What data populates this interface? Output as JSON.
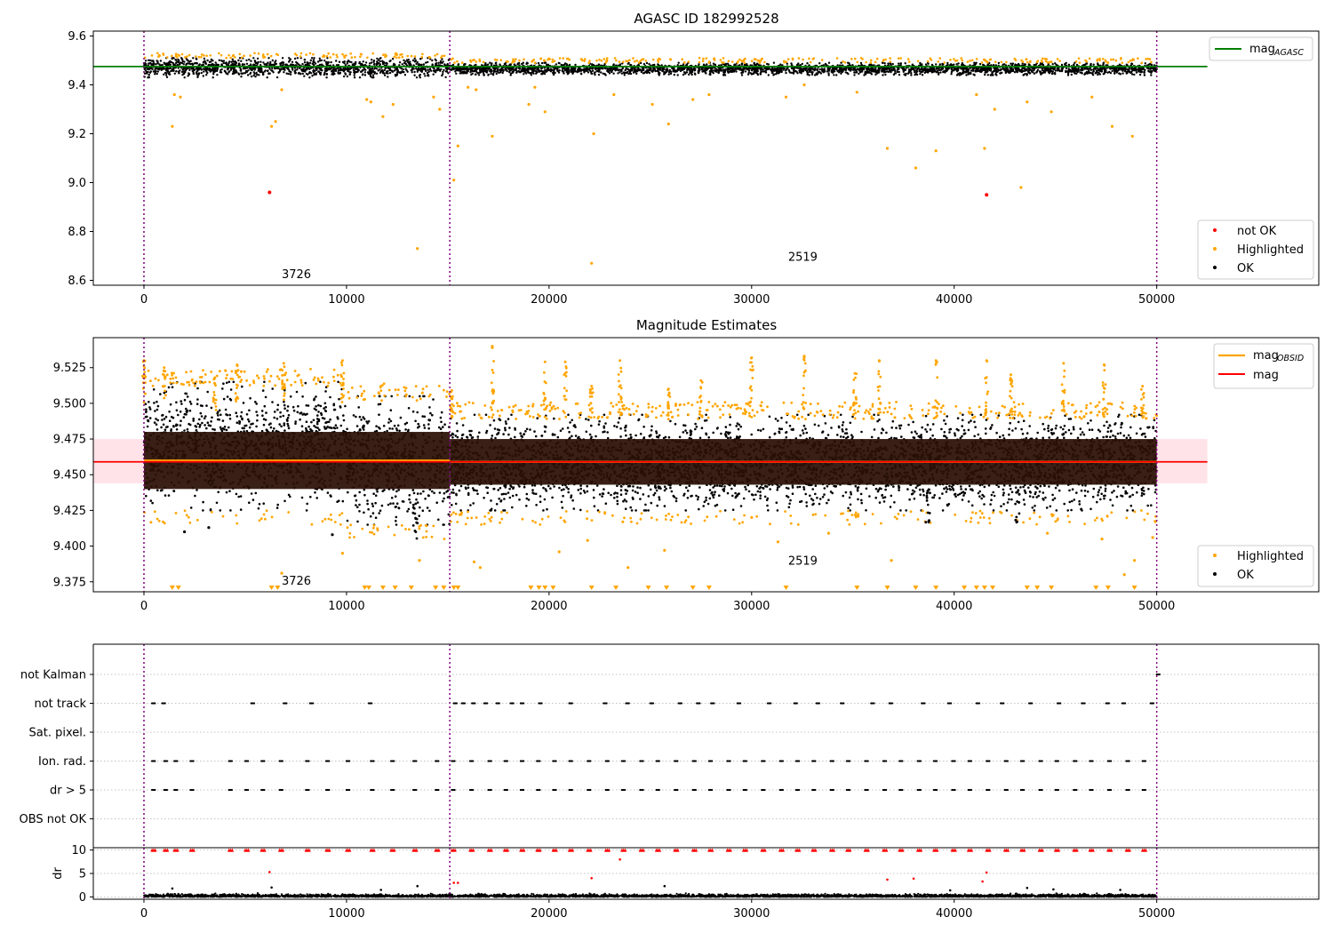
{
  "figure": {
    "colors": {
      "ok": "#000000",
      "highlighted": "#ffa500",
      "not_ok": "#ff0000",
      "agasc_line": "#008000",
      "mag_line": "#ff0000",
      "obsid_line": "#ffa500",
      "band": "#ffc0cb",
      "obs_boundary": "#800080",
      "grid": "#b0b0b0"
    }
  },
  "chart_data": [
    {
      "type": "scatter",
      "title": "AGASC ID 182992528",
      "xlabel": "",
      "ylabel": "",
      "xlim": [
        -2500,
        58000
      ],
      "ylim": [
        8.58,
        9.62
      ],
      "xticks": [
        0,
        10000,
        20000,
        30000,
        40000,
        50000
      ],
      "yticks": [
        8.6,
        8.8,
        9.0,
        9.2,
        9.4,
        9.6
      ],
      "ytick_labels": [
        "8.6",
        "8.8",
        "9.0",
        "9.2",
        "9.4",
        "9.6"
      ],
      "grid": false,
      "obs_boundaries": [
        0,
        15100,
        50000
      ],
      "obs_labels": [
        {
          "x": 6800,
          "y": 8.61,
          "text": "3726"
        },
        {
          "x": 31800,
          "y": 8.68,
          "text": "2519"
        }
      ],
      "mag_agasc": {
        "value": 9.475,
        "x": [
          -2500,
          52500
        ]
      },
      "ok_band": [
        {
          "x": [
            0,
            15100
          ],
          "y": [
            9.43,
            9.51
          ]
        },
        {
          "x": [
            15100,
            50000
          ],
          "y": [
            9.44,
            9.49
          ]
        }
      ],
      "highlighted_points": [
        [
          1400,
          9.23
        ],
        [
          1500,
          9.36
        ],
        [
          1800,
          9.35
        ],
        [
          6300,
          9.23
        ],
        [
          6500,
          9.25
        ],
        [
          6800,
          9.38
        ],
        [
          11000,
          9.34
        ],
        [
          11200,
          9.33
        ],
        [
          11800,
          9.27
        ],
        [
          12300,
          9.32
        ],
        [
          13500,
          8.73
        ],
        [
          14300,
          9.35
        ],
        [
          14600,
          9.3
        ],
        [
          15300,
          9.01
        ],
        [
          15500,
          9.15
        ],
        [
          16000,
          9.39
        ],
        [
          16400,
          9.38
        ],
        [
          17200,
          9.19
        ],
        [
          19000,
          9.32
        ],
        [
          19300,
          9.39
        ],
        [
          19800,
          9.29
        ],
        [
          22100,
          8.67
        ],
        [
          22200,
          9.2
        ],
        [
          23200,
          9.36
        ],
        [
          25100,
          9.32
        ],
        [
          25900,
          9.24
        ],
        [
          27100,
          9.34
        ],
        [
          27900,
          9.36
        ],
        [
          31700,
          9.35
        ],
        [
          32600,
          9.4
        ],
        [
          35200,
          9.37
        ],
        [
          36700,
          9.14
        ],
        [
          38100,
          9.06
        ],
        [
          39100,
          9.13
        ],
        [
          41100,
          9.36
        ],
        [
          41500,
          9.14
        ],
        [
          42000,
          9.3
        ],
        [
          43300,
          8.98
        ],
        [
          43600,
          9.33
        ],
        [
          44800,
          9.29
        ],
        [
          46800,
          9.35
        ],
        [
          47800,
          9.23
        ],
        [
          48800,
          9.19
        ]
      ],
      "not_ok_points": [
        [
          6200,
          8.96
        ],
        [
          41600,
          8.95
        ]
      ],
      "legend_upper": {
        "placement": "upper right",
        "entries": [
          {
            "label": "mag",
            "sub": "AGASC"
          }
        ]
      },
      "legend_lower": {
        "placement": "lower right",
        "entries": [
          "not OK",
          "Highlighted",
          "OK"
        ]
      }
    },
    {
      "type": "scatter",
      "title": "Magnitude Estimates",
      "xlabel": "",
      "ylabel": "",
      "xlim": [
        -2500,
        58000
      ],
      "ylim": [
        9.368,
        9.546
      ],
      "xticks": [
        0,
        10000,
        20000,
        30000,
        40000,
        50000
      ],
      "yticks": [
        9.375,
        9.4,
        9.425,
        9.45,
        9.475,
        9.5,
        9.525
      ],
      "ytick_labels": [
        "9.375",
        "9.400",
        "9.425",
        "9.450",
        "9.475",
        "9.500",
        "9.525"
      ],
      "grid": false,
      "obs_boundaries": [
        0,
        15100,
        50000
      ],
      "obs_labels": [
        {
          "x": 6800,
          "y": 9.373,
          "text": "3726"
        },
        {
          "x": 31800,
          "y": 9.387,
          "text": "2519"
        }
      ],
      "mag": {
        "value": 9.459,
        "x": [
          -2500,
          52500
        ]
      },
      "mag_band": {
        "y": [
          9.444,
          9.475
        ],
        "x": [
          -2500,
          52500
        ]
      },
      "mag_obsid": [
        {
          "x": [
            0,
            15100
          ],
          "value": 9.46
        },
        {
          "x": [
            15100,
            50000
          ],
          "value": 9.459
        }
      ],
      "core_band": [
        {
          "x": [
            0,
            15100
          ],
          "y": [
            9.44,
            9.48
          ]
        },
        {
          "x": [
            15100,
            50000
          ],
          "y": [
            9.443,
            9.475
          ]
        }
      ],
      "ok_envelope": [
        {
          "x": [
            0,
            10000
          ],
          "y": [
            9.425,
            9.515
          ]
        },
        {
          "x": [
            10000,
            15100
          ],
          "y": [
            9.415,
            9.505
          ]
        },
        {
          "x": [
            15100,
            50000
          ],
          "y": [
            9.425,
            9.492
          ]
        }
      ],
      "isolated_points": [
        {
          "group": "ok",
          "x": 2000,
          "y": 9.41
        },
        {
          "group": "ok",
          "x": 3200,
          "y": 9.413
        },
        {
          "group": "ok",
          "x": 9300,
          "y": 9.408
        },
        {
          "group": "highlighted",
          "x": 6800,
          "y": 9.381
        },
        {
          "group": "highlighted",
          "x": 9800,
          "y": 9.395
        },
        {
          "group": "highlighted",
          "x": 13600,
          "y": 9.39
        },
        {
          "group": "highlighted",
          "x": 16300,
          "y": 9.389
        },
        {
          "group": "highlighted",
          "x": 16600,
          "y": 9.385
        },
        {
          "group": "highlighted",
          "x": 20500,
          "y": 9.396
        },
        {
          "group": "highlighted",
          "x": 21900,
          "y": 9.404
        },
        {
          "group": "highlighted",
          "x": 23900,
          "y": 9.385
        },
        {
          "group": "highlighted",
          "x": 25700,
          "y": 9.397
        },
        {
          "group": "highlighted",
          "x": 30000,
          "y": 9.42
        },
        {
          "group": "highlighted",
          "x": 31300,
          "y": 9.403
        },
        {
          "group": "highlighted",
          "x": 33800,
          "y": 9.409
        },
        {
          "group": "highlighted",
          "x": 36900,
          "y": 9.39
        },
        {
          "group": "highlighted",
          "x": 44600,
          "y": 9.409
        },
        {
          "group": "highlighted",
          "x": 47300,
          "y": 9.405
        },
        {
          "group": "highlighted",
          "x": 48400,
          "y": 9.38
        },
        {
          "group": "highlighted",
          "x": 48900,
          "y": 9.39
        },
        {
          "group": "highlighted",
          "x": 49800,
          "y": 9.406
        },
        {
          "group": "highlighted",
          "x": 17200,
          "y": 9.539
        },
        {
          "group": "highlighted",
          "x": 32600,
          "y": 9.533
        }
      ],
      "spikes": [
        {
          "x": 0,
          "y": [
            9.5,
            9.53
          ]
        },
        {
          "x": 1000,
          "y": [
            9.5,
            9.525
          ]
        },
        {
          "x": 3500,
          "y": [
            9.495,
            9.518
          ]
        },
        {
          "x": 4600,
          "y": [
            9.5,
            9.527
          ]
        },
        {
          "x": 6900,
          "y": [
            9.5,
            9.528
          ]
        },
        {
          "x": 9800,
          "y": [
            9.5,
            9.53
          ]
        },
        {
          "x": 15200,
          "y": [
            9.49,
            9.509
          ]
        },
        {
          "x": 17200,
          "y": [
            9.49,
            9.54
          ]
        },
        {
          "x": 19800,
          "y": [
            9.49,
            9.529
          ]
        },
        {
          "x": 20800,
          "y": [
            9.49,
            9.529
          ]
        },
        {
          "x": 22100,
          "y": [
            9.49,
            9.512
          ]
        },
        {
          "x": 23500,
          "y": [
            9.49,
            9.53
          ]
        },
        {
          "x": 25900,
          "y": [
            9.49,
            9.51
          ]
        },
        {
          "x": 27500,
          "y": [
            9.49,
            9.516
          ]
        },
        {
          "x": 30000,
          "y": [
            9.49,
            9.532
          ]
        },
        {
          "x": 32600,
          "y": [
            9.49,
            9.532
          ]
        },
        {
          "x": 35100,
          "y": [
            9.49,
            9.521
          ]
        },
        {
          "x": 36300,
          "y": [
            9.49,
            9.53
          ]
        },
        {
          "x": 39100,
          "y": [
            9.49,
            9.53
          ]
        },
        {
          "x": 41600,
          "y": [
            9.49,
            9.53
          ]
        },
        {
          "x": 42800,
          "y": [
            9.49,
            9.52
          ]
        },
        {
          "x": 45400,
          "y": [
            9.49,
            9.528
          ]
        },
        {
          "x": 47400,
          "y": [
            9.49,
            9.527
          ]
        },
        {
          "x": 49300,
          "y": [
            9.49,
            9.512
          ]
        }
      ],
      "low_spikes": [
        {
          "x": 13400,
          "y": [
            9.405,
            9.43
          ]
        },
        {
          "x": 38700,
          "y": [
            9.415,
            9.44
          ]
        },
        {
          "x": 43100,
          "y": [
            9.415,
            9.44
          ]
        }
      ],
      "out_of_range_markers": [
        1400,
        1700,
        6300,
        6600,
        10900,
        11100,
        11800,
        12400,
        13200,
        14400,
        14800,
        15300,
        15500,
        19100,
        19500,
        19800,
        20200,
        22100,
        23300,
        24900,
        25800,
        27100,
        27900,
        31700,
        35200,
        36700,
        38100,
        39100,
        40500,
        41100,
        41500,
        41900,
        43600,
        44100,
        44800,
        47000,
        47600,
        48900
      ],
      "legend_upper": {
        "placement": "upper right",
        "entries": [
          {
            "label": "mag",
            "sub": "OBSID"
          },
          {
            "label": "mag",
            "sub": ""
          }
        ]
      },
      "legend_lower": {
        "placement": "lower right",
        "entries": [
          "Highlighted",
          "OK"
        ]
      }
    },
    {
      "type": "scatter",
      "title": "",
      "xlabel": "",
      "ylabel": "",
      "xlim": [
        -2500,
        58000
      ],
      "categories": [
        "not Kalman",
        "not track",
        "Sat. pixel.",
        "Ion. rad.",
        "dr > 5",
        "OBS not OK"
      ],
      "grid": true,
      "obs_boundaries": [
        0,
        15100,
        50000
      ],
      "flag_events": {
        "not Kalman": [
          50000
        ],
        "not track": [
          400,
          900,
          5300,
          6900,
          8200,
          11100,
          15300,
          15700,
          16200,
          16800,
          17400,
          18100,
          18600,
          19500,
          21000,
          22700,
          23800,
          25000,
          26400,
          27300,
          28000,
          29300,
          30800,
          32100,
          33200,
          34400,
          35900,
          36800,
          38400,
          39700,
          41100,
          42300,
          43700,
          45100,
          46300,
          47500,
          48300,
          49700
        ],
        "Sat. pixel.": [],
        "Ion. rad.": [
          400,
          1000,
          1500,
          2300,
          4200,
          5000,
          5800,
          6700,
          8000,
          9000,
          10000,
          11200,
          12200,
          13300,
          14400,
          15200,
          16100,
          17000,
          17800,
          18600,
          19400,
          20200,
          21000,
          21900,
          22800,
          23600,
          24500,
          25300,
          26200,
          27100,
          27900,
          28800,
          29600,
          30500,
          31400,
          32200,
          33000,
          33900,
          34700,
          35600,
          36500,
          37300,
          38200,
          39000,
          39900,
          40700,
          41600,
          42500,
          43300,
          44200,
          45000,
          45900,
          46700,
          47600,
          48500,
          49300
        ],
        "dr > 5": [
          400,
          1000,
          1500,
          2300,
          4200,
          5000,
          5800,
          6700,
          8000,
          9000,
          10000,
          11200,
          12200,
          13300,
          14400,
          15200,
          16100,
          17000,
          17800,
          18600,
          19400,
          20200,
          21000,
          21900,
          22800,
          23600,
          24500,
          25300,
          26200,
          27100,
          27900,
          28800,
          29600,
          30500,
          31400,
          32200,
          33000,
          33900,
          34700,
          35600,
          36500,
          37300,
          38200,
          39000,
          39900,
          40700,
          41600,
          42500,
          43300,
          44200,
          45000,
          45900,
          46700,
          47600,
          48500,
          49300
        ],
        "OBS not OK": []
      }
    },
    {
      "type": "scatter",
      "title": "",
      "xlabel": "",
      "ylabel": "dr",
      "xlim": [
        -2500,
        58000
      ],
      "ylim": [
        -0.5,
        10.5
      ],
      "xticks": [
        0,
        10000,
        20000,
        30000,
        40000,
        50000
      ],
      "yticks": [
        0,
        5,
        10
      ],
      "grid": true,
      "obs_boundaries": [
        0,
        15100,
        50000
      ],
      "capped_markers": [
        400,
        1000,
        1500,
        2300,
        4200,
        5000,
        5800,
        6700,
        8000,
        9000,
        10000,
        11200,
        12200,
        13300,
        14400,
        15200,
        16100,
        17000,
        17800,
        18600,
        19400,
        20200,
        21000,
        21900,
        22800,
        23600,
        24500,
        25300,
        26200,
        27100,
        27900,
        28800,
        29600,
        30500,
        31400,
        32200,
        33000,
        33900,
        34700,
        35600,
        36500,
        37300,
        38200,
        39000,
        39900,
        40700,
        41600,
        42500,
        43300,
        44200,
        45000,
        45900,
        46700,
        47600,
        48500,
        49300
      ],
      "red_points": [
        [
          6200,
          5.3
        ],
        [
          15300,
          3.0
        ],
        [
          15500,
          3.0
        ],
        [
          22100,
          4.0
        ],
        [
          23500,
          8.0
        ],
        [
          36700,
          3.7
        ],
        [
          38000,
          3.9
        ],
        [
          41400,
          3.3
        ],
        [
          41600,
          5.2
        ]
      ],
      "black_outliers": [
        [
          1400,
          1.8
        ],
        [
          6300,
          2.0
        ],
        [
          11700,
          1.5
        ],
        [
          13500,
          2.3
        ],
        [
          25700,
          2.3
        ],
        [
          39800,
          1.4
        ],
        [
          43600,
          1.9
        ],
        [
          44900,
          1.6
        ],
        [
          48200,
          1.5
        ]
      ]
    }
  ]
}
